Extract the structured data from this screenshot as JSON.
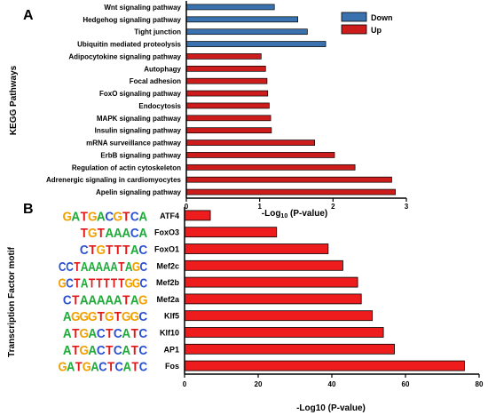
{
  "colors": {
    "down": "#3a72b0",
    "up": "#cc1c1c",
    "tf_bar": "#ee1c1c",
    "axis": "#000000"
  },
  "chart_data": [
    {
      "panel": "A",
      "type": "bar",
      "orientation": "horizontal",
      "ylabel": "KEGG Pathways",
      "xlabel_prefix": "-Log",
      "xlabel_sub": "10",
      "xlabel_suffix": " (P-value)",
      "xlim": [
        0,
        3
      ],
      "xticks": [
        "0",
        "1",
        "2",
        "3"
      ],
      "legend": {
        "placement": "top-right",
        "items": [
          {
            "name": "Down",
            "color": "#3a72b0"
          },
          {
            "name": "Up",
            "color": "#cc1c1c"
          }
        ]
      },
      "series": [
        {
          "name": "Down",
          "color": "#3a72b0",
          "categories": [
            "Wnt signaling pathway",
            "Hedgehog signaling pathway",
            "Tight junction",
            "Ubiquitin mediated proteolysis"
          ],
          "values": [
            1.2,
            1.52,
            1.65,
            1.9
          ]
        },
        {
          "name": "Up",
          "color": "#cc1c1c",
          "categories": [
            "Adipocytokine signaling pathway",
            "Autophagy",
            "Focal adhesion",
            "FoxO signaling pathway",
            "Endocytosis",
            "MAPK signaling pathway",
            "Insulin signaling pathway",
            "mRNA surveillance pathway",
            "ErbB signaling pathway",
            "Regulation of actin cytoskeleton",
            "Adrenergic signaling in cardiomyocytes",
            "Apelin signaling pathway"
          ],
          "values": [
            1.02,
            1.08,
            1.1,
            1.11,
            1.13,
            1.15,
            1.16,
            1.75,
            2.02,
            2.3,
            2.8,
            2.85
          ]
        }
      ]
    },
    {
      "panel": "B",
      "type": "bar",
      "orientation": "horizontal",
      "ylabel": "Transcription Factor motif",
      "xlabel": "-Log10 (P-value)",
      "xlim": [
        0,
        80
      ],
      "xticks": [
        "0",
        "20",
        "40",
        "60",
        "80"
      ],
      "categories": [
        "ATF4",
        "FoxO3",
        "FoxO1",
        "Mef2c",
        "Mef2b",
        "Mef2a",
        "Klf5",
        "Klf10",
        "AP1",
        "Fos"
      ],
      "values": [
        7,
        25,
        39,
        43,
        47,
        48,
        51,
        54,
        57,
        76
      ],
      "motifs": [
        "GATGACGTCA",
        "TGTAAACA",
        "CTGTTTAC",
        "CCTAAAAATAGC",
        "GCTATTTTTGGC",
        "CTAAAAATAG",
        "AGGGTGTGGC",
        "ATGACTCATC",
        "ATGACTCATC",
        "GATGACTCATC"
      ]
    }
  ]
}
